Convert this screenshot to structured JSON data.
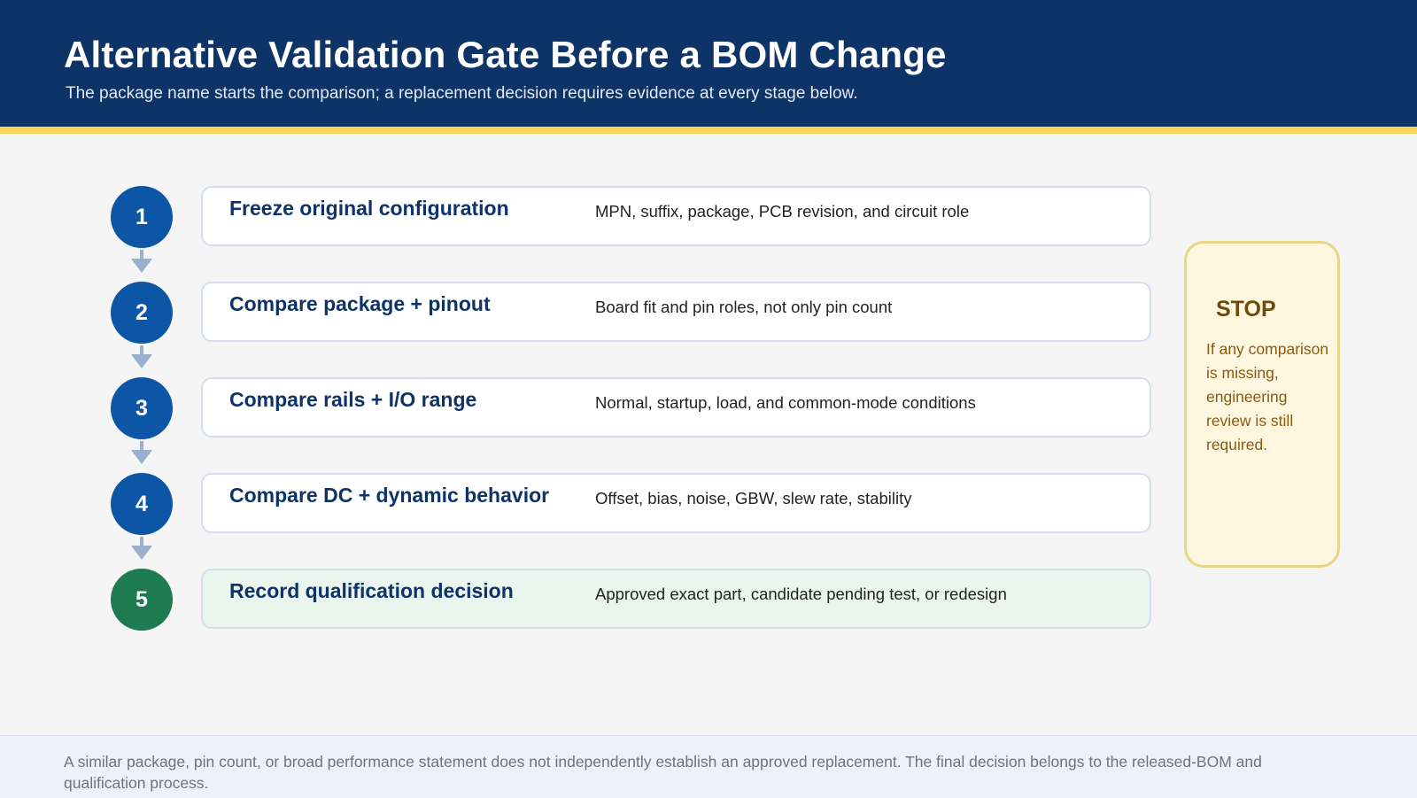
{
  "header": {
    "title": "Alternative Validation Gate Before a BOM Change",
    "subtitle": "The package name starts the comparison; a replacement decision requires evidence at every stage below."
  },
  "steps": [
    {
      "number": "1",
      "title": "Freeze original configuration",
      "description": "MPN, suffix, package, PCB revision, and circuit role"
    },
    {
      "number": "2",
      "title": "Compare package + pinout",
      "description": "Board fit and pin roles, not only pin count"
    },
    {
      "number": "3",
      "title": "Compare rails + I/O range",
      "description": "Normal, startup, load, and common-mode conditions"
    },
    {
      "number": "4",
      "title": "Compare DC + dynamic behavior",
      "description": "Offset, bias, noise, GBW, slew rate, stability"
    },
    {
      "number": "5",
      "title": "Record qualification decision",
      "description": "Approved exact part, candidate pending test, or redesign"
    }
  ],
  "stop": {
    "title": "STOP",
    "body": "If any comparison is missing, engineering review is still required."
  },
  "footer": {
    "note": "A similar package, pin count, or broad performance statement does not independently establish an approved replacement. The final decision belongs to the released-BOM and qualification process."
  },
  "colors": {
    "header_bg": "#0d3367",
    "accent_stripe": "#f8d65a",
    "step_circle": "#0d56a6",
    "final_step_circle": "#1e7a51",
    "stop_bg": "#fdf7e0"
  }
}
